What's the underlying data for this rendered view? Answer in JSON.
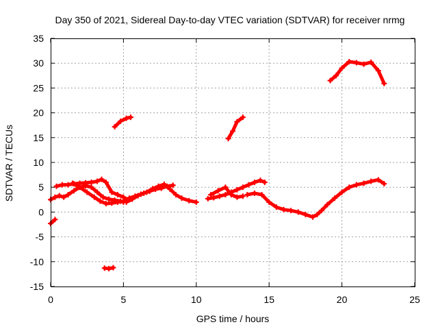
{
  "chart_data": {
    "type": "scatter",
    "title": "Day 350 of 2021, Sidereal Day-to-day VTEC variation (SDTVAR) for receiver nrmg",
    "xlabel": "GPS time / hours",
    "ylabel": "SDTVAR / TECUs",
    "xlim": [
      0,
      25
    ],
    "ylim": [
      -15,
      35
    ],
    "xticks": [
      0,
      5,
      10,
      15,
      20,
      25
    ],
    "yticks": [
      -15,
      -10,
      -5,
      0,
      5,
      10,
      15,
      20,
      25,
      30,
      35
    ],
    "grid": true,
    "legend": "none",
    "color": "#ff0000",
    "series": [
      {
        "name": "arc-1",
        "x": [
          0.0,
          0.3
        ],
        "y": [
          -2.3,
          -1.5
        ]
      },
      {
        "name": "arc-2",
        "x": [
          0.0,
          0.3,
          0.6,
          0.9,
          1.2,
          1.6,
          2.0,
          2.4,
          2.8,
          3.2,
          3.6,
          4.0,
          4.4,
          4.8,
          5.0
        ],
        "y": [
          2.5,
          3.0,
          3.3,
          3.0,
          3.5,
          4.3,
          5.0,
          5.3,
          5.0,
          4.0,
          3.0,
          2.6,
          2.4,
          2.2,
          2.0
        ]
      },
      {
        "name": "arc-3",
        "x": [
          0.4,
          0.8,
          1.2,
          1.6,
          2.0,
          2.4,
          2.8,
          3.2,
          3.5,
          3.8,
          4.2,
          4.6,
          5.0,
          5.3
        ],
        "y": [
          5.2,
          5.5,
          5.5,
          5.7,
          5.8,
          5.9,
          6.0,
          6.2,
          6.6,
          6.0,
          4.0,
          3.5,
          3.0,
          2.5
        ]
      },
      {
        "name": "arc-4",
        "x": [
          1.5,
          2.0,
          2.5,
          3.0,
          3.4,
          3.8,
          4.2,
          4.6,
          5.0,
          5.4,
          5.8,
          6.2,
          6.6,
          7.0,
          7.4,
          7.8,
          8.2,
          8.6,
          9.0,
          9.5,
          10.0
        ],
        "y": [
          5.8,
          5.0,
          4.0,
          3.0,
          2.2,
          1.7,
          1.8,
          2.0,
          2.2,
          2.8,
          3.2,
          3.6,
          4.0,
          4.7,
          5.2,
          5.6,
          4.6,
          3.5,
          2.8,
          2.3,
          2.0
        ]
      },
      {
        "name": "arc-5",
        "x": [
          5.2,
          5.6,
          6.0,
          6.4,
          6.8,
          7.2,
          7.6,
          8.0,
          8.4
        ],
        "y": [
          2.0,
          2.6,
          3.3,
          3.8,
          4.2,
          4.6,
          4.8,
          5.2,
          5.4
        ]
      },
      {
        "name": "arc-6",
        "x": [
          3.7,
          4.0,
          4.3
        ],
        "y": [
          -11.3,
          -11.4,
          -11.2
        ]
      },
      {
        "name": "arc-7",
        "x": [
          4.4,
          4.8,
          5.2,
          5.5
        ],
        "y": [
          17.2,
          18.3,
          18.9,
          19.1
        ]
      },
      {
        "name": "arc-8",
        "x": [
          10.8,
          11.2,
          11.6,
          12.0,
          12.4,
          12.8,
          13.2,
          13.6,
          14.0,
          14.4,
          14.7
        ],
        "y": [
          2.7,
          2.9,
          3.2,
          3.5,
          4.0,
          4.5,
          5.0,
          5.5,
          6.0,
          6.4,
          6.0
        ]
      },
      {
        "name": "arc-9",
        "x": [
          11.0,
          11.5,
          12.0,
          12.4,
          12.8,
          13.2
        ],
        "y": [
          3.5,
          4.3,
          5.0,
          3.5,
          3.0,
          3.2
        ]
      },
      {
        "name": "arc-10",
        "x": [
          12.2,
          12.5,
          12.8,
          13.2
        ],
        "y": [
          14.8,
          16.3,
          18.2,
          19.1
        ]
      },
      {
        "name": "arc-11",
        "x": [
          13.5,
          14.0,
          14.5,
          15.0,
          15.5,
          16.0,
          16.5,
          17.0,
          17.5,
          18.0,
          18.3,
          18.6,
          19.0,
          19.5,
          20.0,
          20.5,
          21.0,
          21.5,
          22.0,
          22.5,
          22.9
        ],
        "y": [
          3.5,
          3.8,
          3.5,
          2.0,
          1.0,
          0.5,
          0.3,
          0.0,
          -0.5,
          -1.0,
          -0.5,
          0.3,
          1.5,
          2.8,
          4.0,
          5.0,
          5.5,
          5.8,
          6.2,
          6.5,
          5.7
        ]
      },
      {
        "name": "arc-12",
        "x": [
          19.2,
          19.6,
          20.0,
          20.5,
          21.0,
          21.5,
          22.0,
          22.5,
          22.9
        ],
        "y": [
          26.5,
          27.5,
          29.0,
          30.3,
          30.1,
          29.8,
          30.2,
          28.5,
          25.9
        ]
      }
    ]
  }
}
